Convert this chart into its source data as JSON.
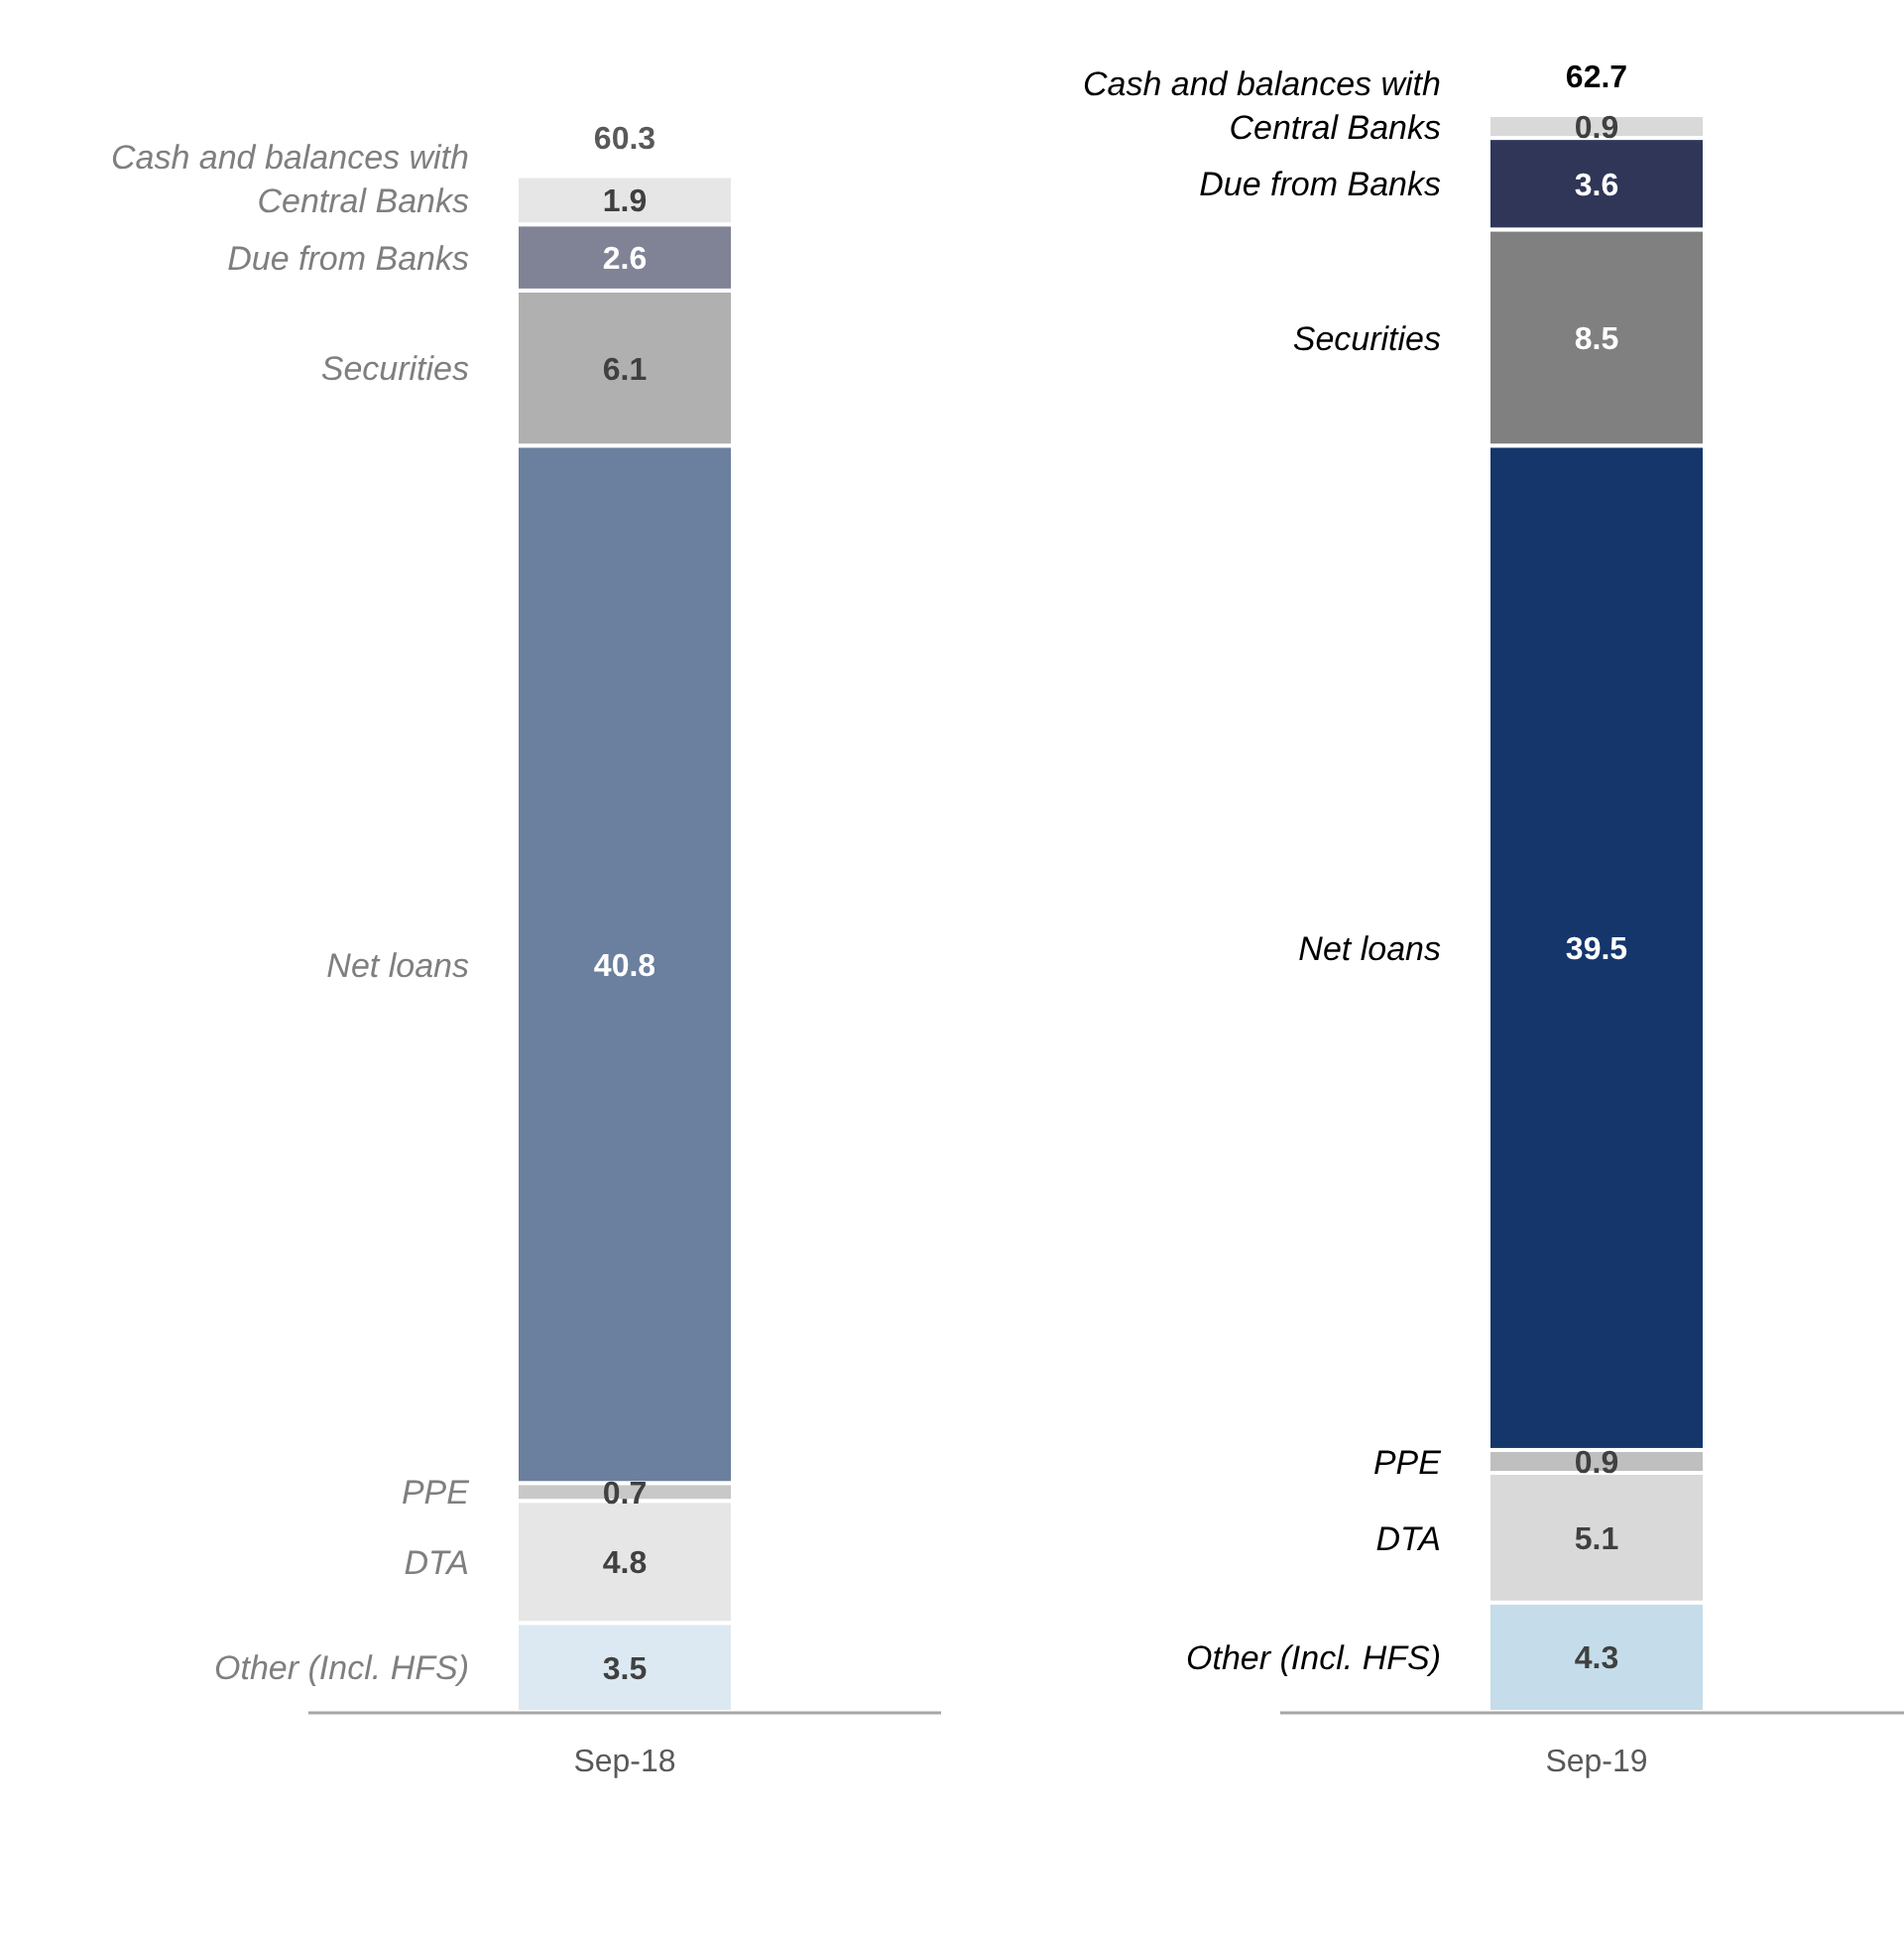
{
  "chart_data": {
    "type": "bar",
    "stacked": true,
    "categories": [
      "Sep-18",
      "Sep-19"
    ],
    "series": [
      {
        "name": "Other (Incl. HFS)",
        "colors": [
          "#dce9f2",
          "#c5dcea"
        ],
        "values": [
          3.5,
          4.3
        ]
      },
      {
        "name": "DTA",
        "colors": [
          "#e6e6e6",
          "#d9d9d9"
        ],
        "values": [
          4.8,
          5.1
        ]
      },
      {
        "name": "PPE",
        "colors": [
          "#c8c8c8",
          "#bfbfbf"
        ],
        "values": [
          0.7,
          0.9
        ]
      },
      {
        "name": "Net loans",
        "colors": [
          "#6b7f9e",
          "#14366b"
        ],
        "values": [
          40.8,
          39.5
        ]
      },
      {
        "name": "Securities",
        "colors": [
          "#b0b0b0",
          "#808080"
        ],
        "values": [
          6.1,
          8.5
        ]
      },
      {
        "name": "Due from Banks",
        "colors": [
          "#808396",
          "#2f3658"
        ],
        "values": [
          2.6,
          3.6
        ]
      },
      {
        "name": "Cash and balances with Central Banks",
        "colors": [
          "#e6e6e6",
          "#d9d9d9"
        ],
        "values": [
          1.9,
          0.9
        ]
      }
    ],
    "data_labels": true,
    "totals": [
      "60.3",
      "62.7"
    ]
  }
}
